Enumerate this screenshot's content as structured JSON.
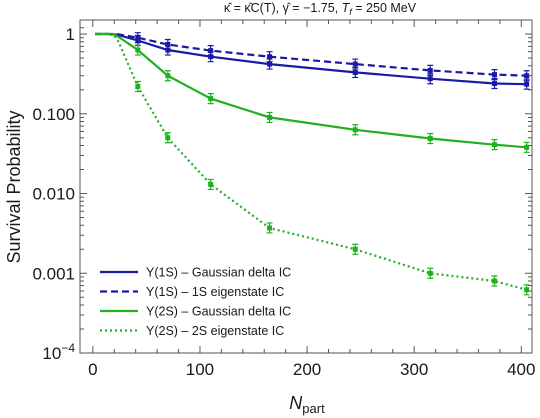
{
  "chart_data": {
    "type": "line",
    "title": "κ̂ = κ̂C(T), γ̂ = −1.75, Tf = 250 MeV",
    "xlabel": "Npart",
    "ylabel": "Survival Probability",
    "xlim": [
      -12,
      410
    ],
    "ylim": [
      0.0001,
      1.5
    ],
    "yscale": "log",
    "x_ticks": [
      0,
      100,
      200,
      300,
      400
    ],
    "x_tick_labels": [
      "0",
      "100",
      "200",
      "300",
      "400"
    ],
    "y_ticks": [
      0.0001,
      0.001,
      0.01,
      0.1,
      1
    ],
    "y_tick_labels": [
      "10⁻⁴",
      "0.001",
      "0.010",
      "0.100",
      "1"
    ],
    "grid": false,
    "legend_position": "bottom-left",
    "series": [
      {
        "name": "Υ(1S) – Gaussian delta IC",
        "color": "#1a1aa6",
        "dash": "solid",
        "x": [
          2,
          8,
          14,
          20,
          24,
          42,
          70,
          110,
          165,
          245,
          315,
          375,
          405
        ],
        "y": [
          1.0,
          1.0,
          1.0,
          0.99,
          0.97,
          0.83,
          0.63,
          0.52,
          0.42,
          0.33,
          0.275,
          0.24,
          0.235
        ]
      },
      {
        "name": "Υ(1S) – 1S eigenstate IC",
        "color": "#1a1aa6",
        "dash": "dashed",
        "x": [
          2,
          8,
          14,
          20,
          24,
          42,
          70,
          110,
          165,
          245,
          315,
          375,
          405
        ],
        "y": [
          1.0,
          1.0,
          1.0,
          1.0,
          0.99,
          0.9,
          0.74,
          0.62,
          0.52,
          0.42,
          0.35,
          0.31,
          0.3
        ]
      },
      {
        "name": "Υ(2S) – Gaussian delta IC",
        "color": "#1fb11f",
        "dash": "solid",
        "x": [
          2,
          8,
          14,
          20,
          24,
          42,
          70,
          110,
          165,
          245,
          315,
          375,
          405
        ],
        "y": [
          1.0,
          1.0,
          1.0,
          0.98,
          0.92,
          0.63,
          0.3,
          0.155,
          0.09,
          0.063,
          0.049,
          0.041,
          0.038
        ]
      },
      {
        "name": "Υ(2S) – 2S eigenstate IC",
        "color": "#1fb11f",
        "dash": "dotted",
        "x": [
          2,
          8,
          14,
          20,
          24,
          42,
          70,
          110,
          165,
          245,
          315,
          375,
          405
        ],
        "y": [
          1.0,
          1.0,
          1.0,
          0.95,
          0.8,
          0.22,
          0.05,
          0.013,
          0.0037,
          0.002,
          0.001,
          0.0008,
          0.00062
        ]
      }
    ]
  }
}
